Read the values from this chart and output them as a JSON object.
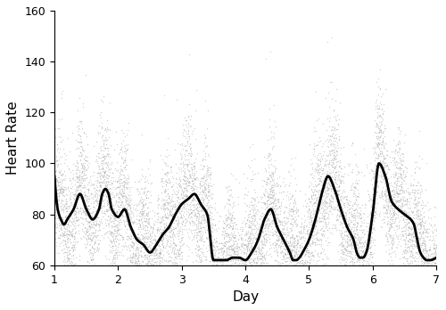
{
  "title": "",
  "xlabel": "Day",
  "ylabel": "Heart Rate",
  "xlim": [
    1,
    7
  ],
  "ylim": [
    60,
    160
  ],
  "xticks": [
    1,
    2,
    3,
    4,
    5,
    6,
    7
  ],
  "yticks": [
    60,
    80,
    100,
    120,
    140,
    160
  ],
  "dot_color": "#aaaaaa",
  "dot_size": 1.0,
  "dot_alpha": 0.5,
  "line_color": "#000000",
  "line_width": 2.0,
  "n_days": 7,
  "points_per_day": 1440,
  "random_seed": 42,
  "background_color": "#ffffff",
  "fitted_curve_knots_x": [
    1.0,
    1.05,
    1.1,
    1.15,
    1.2,
    1.3,
    1.4,
    1.5,
    1.6,
    1.7,
    1.75,
    1.8,
    1.85,
    1.9,
    2.0,
    2.1,
    2.2,
    2.3,
    2.4,
    2.5,
    2.6,
    2.7,
    2.8,
    2.9,
    3.0,
    3.1,
    3.2,
    3.3,
    3.4,
    3.5,
    3.6,
    3.7,
    3.8,
    3.9,
    4.0,
    4.1,
    4.2,
    4.3,
    4.4,
    4.5,
    4.6,
    4.7,
    4.75,
    4.8,
    4.85,
    4.9,
    5.0,
    5.1,
    5.2,
    5.3,
    5.4,
    5.5,
    5.6,
    5.7,
    5.75,
    5.8,
    5.85,
    5.9,
    6.0,
    6.1,
    6.2,
    6.3,
    6.4,
    6.5,
    6.6,
    6.65,
    6.7,
    6.75,
    6.8,
    6.85,
    6.9,
    7.0
  ],
  "fitted_curve_knots_y": [
    95,
    82,
    78,
    76,
    78,
    82,
    88,
    82,
    78,
    82,
    88,
    90,
    88,
    82,
    79,
    82,
    75,
    70,
    68,
    65,
    68,
    72,
    75,
    80,
    84,
    86,
    88,
    84,
    80,
    62,
    62,
    62,
    63,
    63,
    62,
    65,
    70,
    78,
    82,
    75,
    70,
    65,
    62,
    62,
    63,
    65,
    70,
    78,
    88,
    95,
    90,
    82,
    75,
    70,
    65,
    63,
    63,
    65,
    80,
    100,
    95,
    85,
    82,
    80,
    78,
    76,
    70,
    65,
    63,
    62,
    62,
    63
  ]
}
